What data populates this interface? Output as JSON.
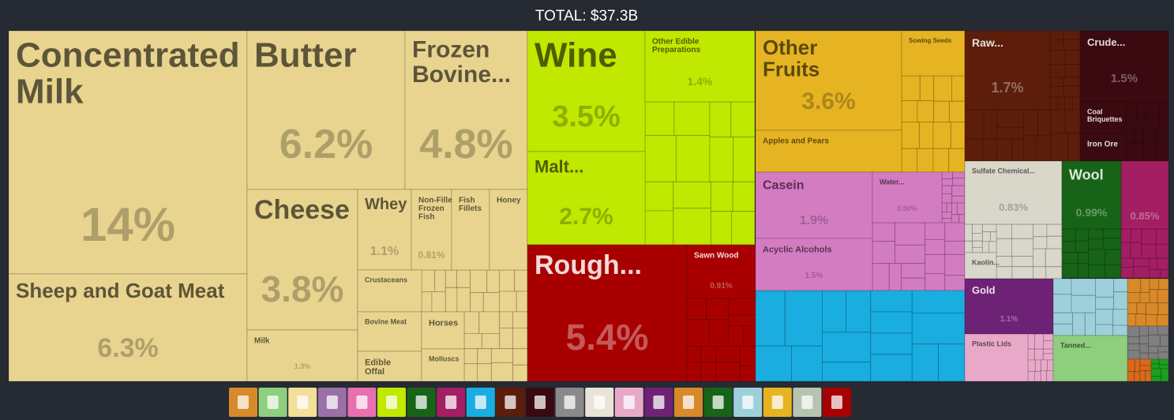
{
  "chart_data": {
    "type": "treemap",
    "title": "TOTAL: $37.3B",
    "categories": [
      "Concentrated Milk",
      "Sheep and Goat Meat",
      "Butter",
      "Frozen Bovine...",
      "Cheese",
      "Whey",
      "Non-Fillet Frozen Fish",
      "Fish Fillets",
      "Honey",
      "Milk",
      "Crustaceans",
      "Bovine Meat",
      "Edible Offal",
      "Horses",
      "Molluscs",
      "Wine",
      "Malt...",
      "Other Edible Preparations",
      "Rough...",
      "Sawn Wood",
      "Other Fruits",
      "Sowing Seeds",
      "Apples and Pears",
      "Casein",
      "Acyclic Alcohols",
      "Water...",
      "Raw...",
      "Crude...",
      "Coal Briquettes",
      "Iron Ore",
      "Sulfate Chemical...",
      "Kaolin...",
      "Wool",
      null,
      "Gold",
      "Plastic Lids",
      "Tanned..."
    ],
    "values": [
      14,
      6.3,
      6.2,
      4.8,
      3.8,
      1.1,
      0.81,
      0.7,
      0.7,
      1.3,
      0.65,
      0.6,
      0.45,
      0.4,
      0.35,
      3.5,
      2.7,
      1.4,
      5.4,
      0.91,
      3.6,
      0.7,
      1.5,
      1.9,
      1.5,
      0.5,
      1.7,
      1.5,
      0.35,
      0.3,
      0.83,
      0.2,
      0.99,
      0.85,
      1.1,
      0.74,
      0.6
    ],
    "value_labels": [
      "14%",
      "6.3%",
      "6.2%",
      "4.8%",
      "3.8%",
      "1.1%",
      "0.81%",
      null,
      null,
      "1.3%",
      null,
      null,
      null,
      null,
      null,
      "3.5%",
      "2.7%",
      "1.4%",
      "5.4%",
      "0.91%",
      "3.6%",
      null,
      null,
      "1.9%",
      "1.5%",
      "0.50%",
      "1.7%",
      "1.5%",
      null,
      null,
      "0.83%",
      null,
      "0.99%",
      "0.85%",
      "1.1%",
      null,
      null
    ],
    "colors": [
      "#e8d48e",
      "#e8d48e",
      "#e8d48e",
      "#e8d48e",
      "#e8d48e",
      "#e8d48e",
      "#e8d48e",
      "#e8d48e",
      "#e8d48e",
      "#e8d48e",
      "#e8d48e",
      "#e8d48e",
      "#e8d48e",
      "#e8d48e",
      "#e8d48e",
      "#c0e800",
      "#c0e800",
      "#c0e800",
      "#a80000",
      "#a80000",
      "#e6b422",
      "#e6b422",
      "#e6b422",
      "#d47cc2",
      "#d47cc2",
      "#d47cc2",
      "#5c1e0a",
      "#3a0a10",
      "#3a0a10",
      "#3a0a10",
      "#d9d6ca",
      "#d9d6ca",
      "#176317",
      "#a31e62",
      "#6e2276",
      "#e8a9c9",
      "#8dcf7e"
    ]
  }
}
